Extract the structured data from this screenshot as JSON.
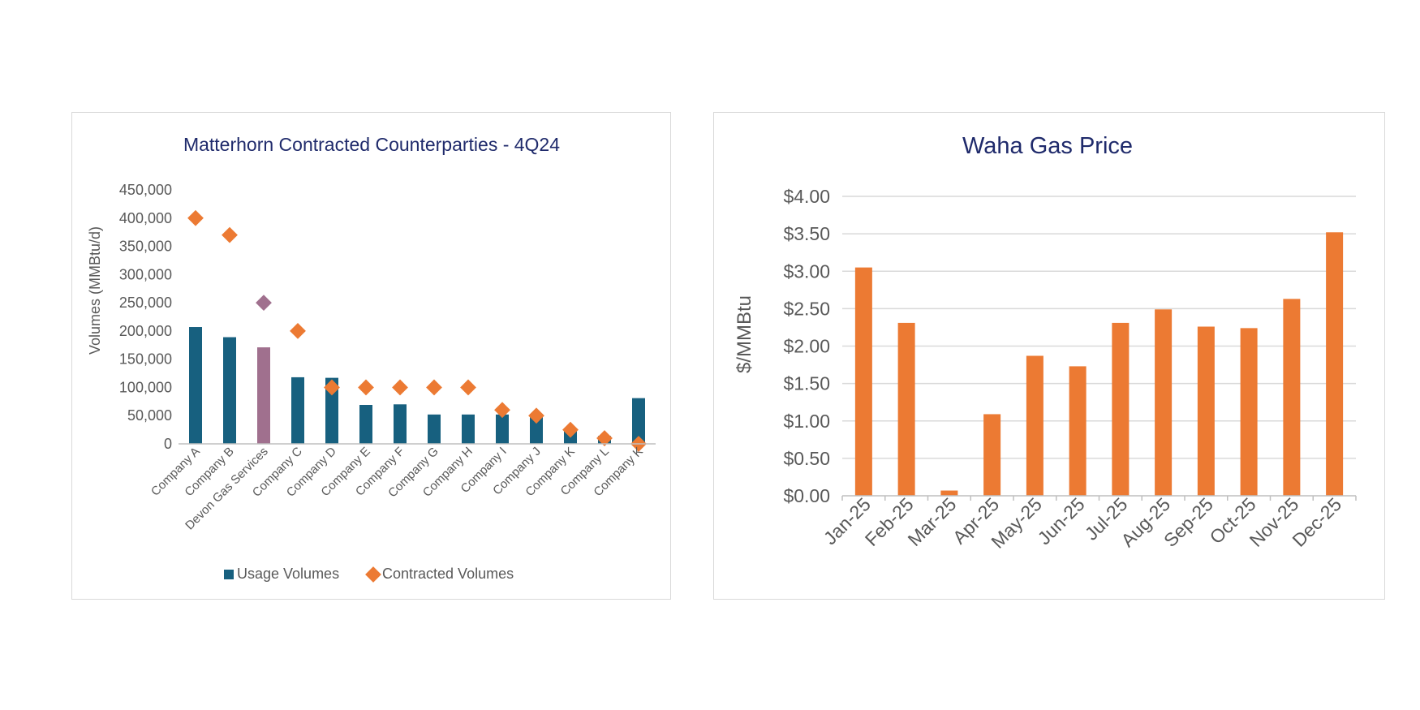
{
  "chart_data": [
    {
      "type": "bar",
      "title": "Matterhorn Contracted Counterparties - 4Q24",
      "ylabel": "Volumes (MMBtu/d)",
      "xlabel": "",
      "ylim": [
        0,
        450000
      ],
      "yticks": [
        "450,000",
        "400,000",
        "350,000",
        "300,000",
        "250,000",
        "200,000",
        "150,000",
        "100,000",
        "50,000",
        "0"
      ],
      "categories": [
        "Company A",
        "Company B",
        "Devon Gas Services",
        "Company C",
        "Company D",
        "Company E",
        "Company F",
        "Company G",
        "Company H",
        "Company I",
        "Company J",
        "Company K",
        "Company L",
        "Company K"
      ],
      "highlight_index": 2,
      "series": [
        {
          "name": "Usage Volumes",
          "type": "bar",
          "color": "#17607f",
          "values": [
            207000,
            189000,
            171000,
            118000,
            117000,
            69000,
            70000,
            52000,
            52000,
            52000,
            53000,
            23000,
            14000,
            81000
          ]
        },
        {
          "name": "Contracted Volumes",
          "type": "scatter",
          "marker": "diamond",
          "color": "#ec7a33",
          "values": [
            400000,
            370000,
            250000,
            200000,
            100000,
            100000,
            100000,
            100000,
            100000,
            60000,
            50000,
            25000,
            10000,
            0
          ]
        }
      ],
      "highlight_color": "#a0708e",
      "grid": false,
      "legend": "bottom"
    },
    {
      "type": "bar",
      "title": "Waha Gas Price",
      "ylabel": "$/MMBtu",
      "xlabel": "",
      "ylim": [
        0,
        4
      ],
      "yticks": [
        "$4.00",
        "$3.50",
        "$3.00",
        "$2.50",
        "$2.00",
        "$1.50",
        "$1.00",
        "$0.50",
        "$0.00"
      ],
      "categories": [
        "Jan-25",
        "Feb-25",
        "Mar-25",
        "Apr-25",
        "May-25",
        "Jun-25",
        "Jul-25",
        "Aug-25",
        "Sep-25",
        "Oct-25",
        "Nov-25",
        "Dec-25"
      ],
      "values": [
        3.05,
        2.31,
        0.07,
        1.09,
        1.87,
        1.73,
        2.31,
        2.49,
        2.26,
        2.24,
        2.63,
        3.52
      ],
      "color": "#ec7a33",
      "grid": true
    }
  ]
}
